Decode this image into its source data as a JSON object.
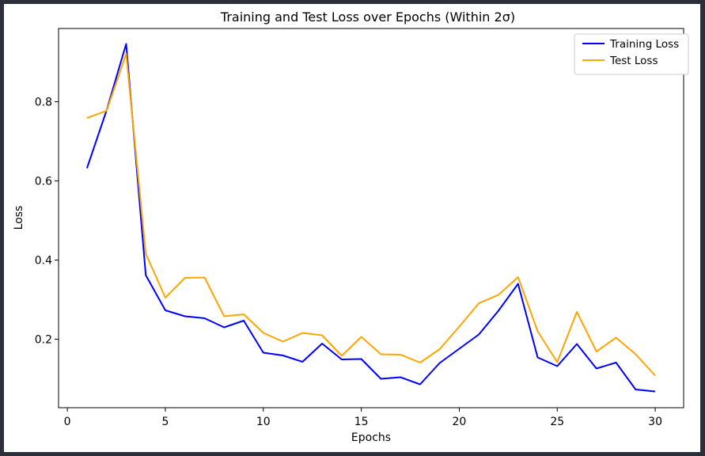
{
  "chart_data": {
    "type": "line",
    "title": "Training and Test Loss over Epochs (Within 2σ)",
    "xlabel": "Epochs",
    "ylabel": "Loss",
    "xlim": [
      -0.45,
      31.45
    ],
    "ylim": [
      0.027,
      0.985
    ],
    "xticks": [
      0,
      5,
      10,
      15,
      20,
      25,
      30
    ],
    "yticks": [
      0.2,
      0.4,
      0.6,
      0.8
    ],
    "ytick_labels": [
      "0.2",
      "0.4",
      "0.6",
      "0.8"
    ],
    "grid": false,
    "legend_position": "top-right",
    "x": [
      1,
      2,
      3,
      4,
      5,
      6,
      7,
      8,
      9,
      10,
      11,
      12,
      13,
      14,
      15,
      16,
      17,
      18,
      19,
      20,
      21,
      22,
      23,
      24,
      25,
      26,
      27,
      28,
      29,
      30
    ],
    "series": [
      {
        "name": "Training Loss",
        "color": "#0000ff",
        "values": [
          0.632,
          0.778,
          0.946,
          0.362,
          0.273,
          0.258,
          0.253,
          0.23,
          0.247,
          0.166,
          0.159,
          0.143,
          0.189,
          0.149,
          0.15,
          0.1,
          0.104,
          0.086,
          0.14,
          0.176,
          0.212,
          0.272,
          0.34,
          0.154,
          0.132,
          0.188,
          0.126,
          0.141,
          0.073,
          0.068
        ]
      },
      {
        "name": "Test Loss",
        "color": "#ffa500",
        "values": [
          0.759,
          0.777,
          0.921,
          0.416,
          0.305,
          0.355,
          0.356,
          0.258,
          0.263,
          0.216,
          0.194,
          0.216,
          0.21,
          0.158,
          0.206,
          0.162,
          0.161,
          0.141,
          0.175,
          0.232,
          0.291,
          0.312,
          0.357,
          0.22,
          0.142,
          0.269,
          0.169,
          0.204,
          0.162,
          0.108
        ]
      }
    ]
  }
}
